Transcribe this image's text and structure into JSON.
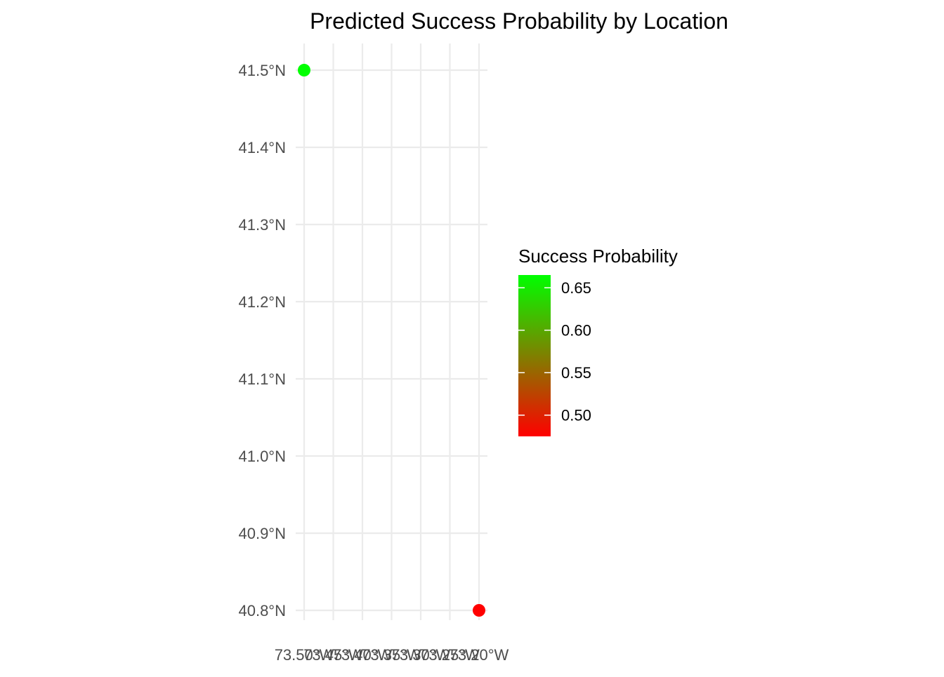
{
  "chart_data": {
    "type": "scatter",
    "title": "Predicted Success Probability by Location",
    "xlabel": "",
    "ylabel": "",
    "x_ticks": [
      -73.5,
      -73.45,
      -73.4,
      -73.35,
      -73.3,
      -73.25,
      -73.2
    ],
    "x_tick_labels": [
      "73.50°W",
      "73.45°W",
      "73.40°W",
      "73.35°W",
      "73.30°W",
      "73.25°W",
      "73.20°W"
    ],
    "y_ticks": [
      40.8,
      40.9,
      41.0,
      41.1,
      41.2,
      41.3,
      41.4,
      41.5
    ],
    "y_tick_labels": [
      "40.8°N",
      "40.9°N",
      "41.0°N",
      "41.1°N",
      "41.2°N",
      "41.3°N",
      "41.4°N",
      "41.5°N"
    ],
    "xlim": [
      -73.5,
      -73.2
    ],
    "ylim": [
      40.8,
      41.5
    ],
    "grid": true,
    "points": [
      {
        "x": -73.5,
        "y": 41.5,
        "value": 0.665
      },
      {
        "x": -73.2,
        "y": 40.8,
        "value": 0.475
      }
    ],
    "legend": {
      "title": "Success Probability",
      "placement": "right",
      "range": [
        0.475,
        0.665
      ],
      "ticks": [
        0.5,
        0.55,
        0.6,
        0.65
      ],
      "tick_labels": [
        "0.50",
        "0.55",
        "0.60",
        "0.65"
      ],
      "color_low": "#ff0000",
      "color_high": "#00ff00"
    },
    "colors": {
      "grid": "#ebebeb",
      "axis_text": "#4d4d4d",
      "title_text": "#000000"
    }
  }
}
